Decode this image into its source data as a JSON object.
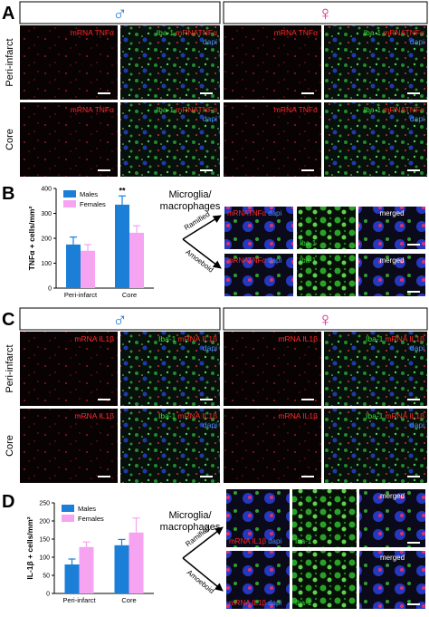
{
  "panels": {
    "a": {
      "label": "A",
      "male": "♂",
      "female": "♀",
      "rows": [
        "Peri-infarct",
        "Core"
      ],
      "mrna": "mRNA TNFα",
      "iba": "Iba-1",
      "mrna_merged": "mRNATNFα",
      "dapi": "dapi"
    },
    "b": {
      "label": "B",
      "heading": [
        "Microglia/",
        "macrophages"
      ],
      "ramified": "Ramified",
      "amoeboid": "Amoeboid",
      "mrna": "mRNATNFα",
      "dapi": "dapi",
      "iba": "Iba-1",
      "merged": "merged"
    },
    "c": {
      "label": "C",
      "male": "♂",
      "female": "♀",
      "rows": [
        "Peri-infarct",
        "Core"
      ],
      "mrna": "mRNA IL1β",
      "iba": "Iba-1",
      "mrna_merged": "mRNA IL1β",
      "dapi": "dapi"
    },
    "d": {
      "label": "D",
      "heading": [
        "Microglia/",
        "macrophages"
      ],
      "ramified": "Ramified",
      "amoeboid": "Amoeboid",
      "mrna": "mRNA IL1β",
      "dapi": "dapi",
      "iba": "Iba-1",
      "merged": "merged"
    }
  },
  "chart_data": [
    {
      "type": "bar",
      "y_label": "TNFα + cells/mm²",
      "categories": [
        "Peri-infarct",
        "Core"
      ],
      "series": [
        {
          "name": "Males",
          "color": "#1b7fd8",
          "values": [
            175,
            335
          ],
          "errors": [
            30,
            35
          ]
        },
        {
          "name": "Females",
          "color": "#f6a3f2",
          "values": [
            150,
            222
          ],
          "errors": [
            25,
            28
          ]
        }
      ],
      "annotation": "**",
      "ylim": [
        0,
        400
      ],
      "yticks": [
        0,
        100,
        200,
        300,
        400
      ],
      "legend": "upper-left"
    },
    {
      "type": "bar",
      "y_label": "IL-1β + cells/mm²",
      "categories": [
        "Peri-infarct",
        "Core"
      ],
      "series": [
        {
          "name": "Males",
          "color": "#1b7fd8",
          "values": [
            80,
            133
          ],
          "errors": [
            15,
            16
          ]
        },
        {
          "name": "Females",
          "color": "#f6a3f2",
          "values": [
            128,
            168
          ],
          "errors": [
            14,
            40
          ]
        }
      ],
      "ylim": [
        0,
        250
      ],
      "yticks": [
        0,
        50,
        100,
        150,
        200,
        250
      ],
      "legend": "upper-left"
    }
  ]
}
